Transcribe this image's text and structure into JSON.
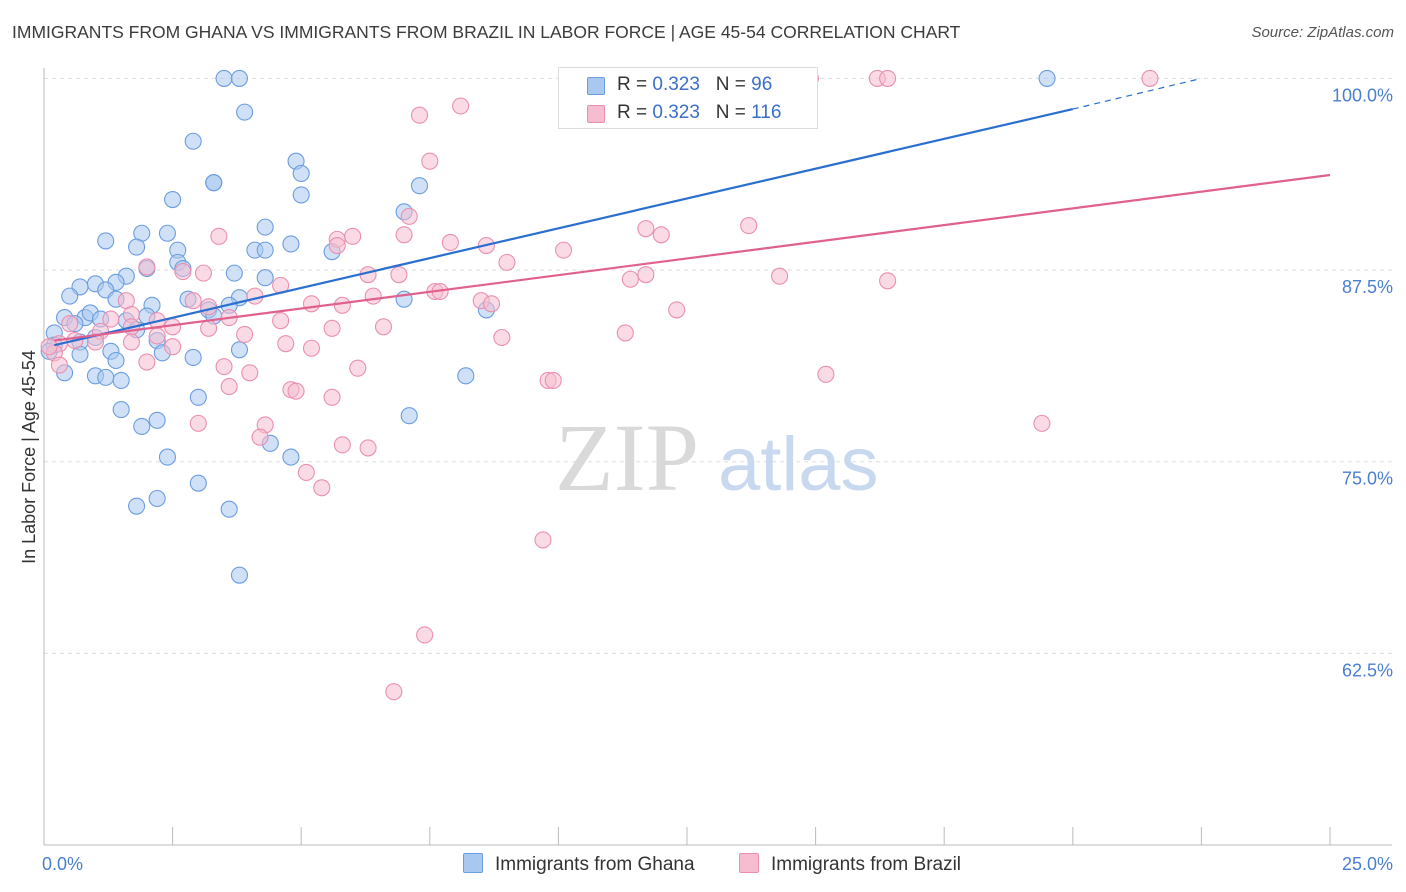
{
  "title": "IMMIGRANTS FROM GHANA VS IMMIGRANTS FROM BRAZIL IN LABOR FORCE | AGE 45-54 CORRELATION CHART",
  "source": "Source: ZipAtlas.com",
  "watermark": "ZIPatlas",
  "colors": {
    "ghana_fill": "#a9c8f0",
    "ghana_stroke": "#6b9de0",
    "ghana_line": "#2a6fcf",
    "brazil_fill": "#f6bdd0",
    "brazil_stroke": "#ea8fb0",
    "brazil_line": "#e0608e",
    "tick_label": "#4a7fd0",
    "grid": "#dddddd"
  },
  "legend": {
    "ghana": {
      "r_label": "R = ",
      "r_value": "0.323",
      "n_label": "N = ",
      "n_value": "96"
    },
    "brazil": {
      "r_label": "R = ",
      "r_value": "0.323",
      "n_label": "N = ",
      "n_value": "116"
    }
  },
  "bottom_legend": [
    "Immigrants from Ghana",
    "Immigrants from Brazil"
  ],
  "chart_data": {
    "type": "scatter",
    "title": "IMMIGRANTS FROM GHANA VS IMMIGRANTS FROM BRAZIL IN LABOR FORCE | AGE 45-54 CORRELATION CHART",
    "xlabel": "",
    "ylabel": "In Labor Force | Age 45-54",
    "xlim": [
      0,
      25
    ],
    "ylim": [
      50,
      101.2
    ],
    "x_tick_labels": [
      "0.0%",
      "25.0%"
    ],
    "x_ticks": [
      0,
      25
    ],
    "y_tick_labels": [
      "100.0%",
      "87.5%",
      "75.0%",
      "62.5%"
    ],
    "y_ticks": [
      100,
      87.5,
      75,
      62.5
    ],
    "grid": true,
    "legend_position": "top-center",
    "series": [
      {
        "name": "Immigrants from Ghana",
        "R": 0.323,
        "N": 96,
        "trend": {
          "x": [
            0.2,
            20
          ],
          "y": [
            82.6,
            98.0
          ],
          "dashed_x": [
            20,
            22.5
          ],
          "dashed_y": [
            98.0,
            100.0
          ]
        },
        "points": [
          [
            3.5,
            100
          ],
          [
            3.8,
            100
          ],
          [
            19.5,
            100
          ],
          [
            3.9,
            97.8
          ],
          [
            2.9,
            95.9
          ],
          [
            4.9,
            94.6
          ],
          [
            3.3,
            93.2
          ],
          [
            3.3,
            93.2
          ],
          [
            7.3,
            93
          ],
          [
            5.0,
            93.8
          ],
          [
            5.0,
            92.4
          ],
          [
            2.5,
            92.1
          ],
          [
            7.0,
            91.3
          ],
          [
            4.3,
            90.3
          ],
          [
            2.4,
            89.9
          ],
          [
            1.9,
            89.9
          ],
          [
            1.2,
            89.4
          ],
          [
            4.8,
            89.2
          ],
          [
            1.8,
            89.0
          ],
          [
            2.6,
            88.8
          ],
          [
            4.1,
            88.8
          ],
          [
            4.3,
            88.8
          ],
          [
            5.6,
            88.7
          ],
          [
            2.6,
            88.0
          ],
          [
            2.7,
            87.6
          ],
          [
            2.0,
            87.6
          ],
          [
            1.6,
            87.1
          ],
          [
            4.3,
            87.0
          ],
          [
            3.7,
            87.3
          ],
          [
            1.0,
            86.6
          ],
          [
            1.4,
            86.7
          ],
          [
            1.2,
            86.2
          ],
          [
            0.7,
            86.4
          ],
          [
            0.5,
            85.8
          ],
          [
            1.4,
            85.6
          ],
          [
            2.8,
            85.6
          ],
          [
            3.8,
            85.7
          ],
          [
            7.0,
            85.6
          ],
          [
            2.1,
            85.2
          ],
          [
            3.6,
            85.2
          ],
          [
            3.2,
            84.9
          ],
          [
            2.0,
            84.5
          ],
          [
            1.6,
            84.2
          ],
          [
            0.8,
            84.4
          ],
          [
            0.4,
            84.4
          ],
          [
            0.9,
            84.7
          ],
          [
            0.6,
            84.0
          ],
          [
            1.1,
            84.3
          ],
          [
            3.3,
            84.5
          ],
          [
            8.6,
            84.9
          ],
          [
            0.2,
            83.4
          ],
          [
            1.8,
            83.6
          ],
          [
            1.0,
            83.1
          ],
          [
            0.7,
            82.8
          ],
          [
            2.2,
            82.9
          ],
          [
            0.2,
            82.6
          ],
          [
            0.1,
            82.2
          ],
          [
            0.7,
            82.0
          ],
          [
            1.3,
            82.2
          ],
          [
            2.3,
            82.1
          ],
          [
            2.9,
            81.8
          ],
          [
            1.4,
            81.6
          ],
          [
            3.8,
            82.3
          ],
          [
            0.4,
            80.8
          ],
          [
            1.0,
            80.6
          ],
          [
            1.2,
            80.5
          ],
          [
            1.5,
            80.3
          ],
          [
            8.2,
            80.6
          ],
          [
            3.0,
            79.2
          ],
          [
            1.5,
            78.4
          ],
          [
            2.2,
            77.7
          ],
          [
            7.1,
            78.0
          ],
          [
            1.9,
            77.3
          ],
          [
            4.4,
            76.2
          ],
          [
            4.8,
            75.3
          ],
          [
            2.4,
            75.3
          ],
          [
            3.0,
            73.6
          ],
          [
            2.2,
            72.6
          ],
          [
            1.8,
            72.1
          ],
          [
            3.6,
            71.9
          ],
          [
            3.8,
            67.6
          ]
        ]
      },
      {
        "name": "Immigrants from Brazil",
        "R": 0.323,
        "N": 116,
        "trend": {
          "x": [
            0.2,
            25
          ],
          "y": [
            82.9,
            93.7
          ]
        },
        "points": [
          [
            11.9,
            100
          ],
          [
            14.9,
            100
          ],
          [
            21.5,
            100
          ],
          [
            16.2,
            100
          ],
          [
            16.4,
            100
          ],
          [
            8.1,
            98.2
          ],
          [
            7.3,
            97.6
          ],
          [
            7.5,
            94.6
          ],
          [
            7.1,
            91.0
          ],
          [
            11.7,
            90.2
          ],
          [
            13.7,
            90.4
          ],
          [
            12.0,
            89.8
          ],
          [
            3.4,
            89.7
          ],
          [
            7.0,
            89.8
          ],
          [
            5.7,
            89.5
          ],
          [
            7.9,
            89.3
          ],
          [
            5.7,
            89.1
          ],
          [
            6.0,
            89.7
          ],
          [
            8.6,
            89.1
          ],
          [
            10.1,
            88.8
          ],
          [
            2.0,
            87.7
          ],
          [
            9.0,
            88.0
          ],
          [
            11.7,
            87.2
          ],
          [
            14.3,
            87.1
          ],
          [
            16.4,
            86.8
          ],
          [
            3.1,
            87.3
          ],
          [
            2.7,
            87.4
          ],
          [
            6.3,
            87.2
          ],
          [
            6.9,
            87.2
          ],
          [
            11.4,
            86.9
          ],
          [
            4.6,
            86.5
          ],
          [
            7.6,
            86.1
          ],
          [
            7.7,
            86.1
          ],
          [
            6.4,
            85.8
          ],
          [
            4.1,
            85.8
          ],
          [
            1.6,
            85.5
          ],
          [
            2.9,
            85.5
          ],
          [
            5.2,
            85.3
          ],
          [
            5.8,
            85.2
          ],
          [
            3.2,
            85.1
          ],
          [
            8.5,
            85.5
          ],
          [
            12.3,
            84.9
          ],
          [
            1.7,
            84.6
          ],
          [
            2.2,
            84.2
          ],
          [
            1.3,
            84.3
          ],
          [
            3.6,
            84.4
          ],
          [
            4.6,
            84.2
          ],
          [
            0.5,
            84.0
          ],
          [
            1.7,
            83.8
          ],
          [
            2.5,
            83.8
          ],
          [
            3.2,
            83.7
          ],
          [
            5.6,
            83.7
          ],
          [
            6.6,
            83.8
          ],
          [
            1.1,
            83.5
          ],
          [
            2.2,
            83.2
          ],
          [
            3.9,
            83.3
          ],
          [
            11.3,
            83.4
          ],
          [
            0.6,
            82.9
          ],
          [
            0.3,
            82.7
          ],
          [
            1.0,
            82.8
          ],
          [
            1.7,
            82.8
          ],
          [
            2.5,
            82.5
          ],
          [
            4.7,
            82.7
          ],
          [
            5.2,
            82.4
          ],
          [
            8.9,
            83.1
          ],
          [
            0.2,
            82.1
          ],
          [
            0.3,
            81.3
          ],
          [
            2.0,
            81.5
          ],
          [
            3.5,
            81.2
          ],
          [
            4.0,
            80.8
          ],
          [
            6.1,
            81.1
          ],
          [
            9.8,
            80.3
          ],
          [
            9.9,
            80.3
          ],
          [
            15.2,
            80.7
          ],
          [
            3.6,
            79.9
          ],
          [
            4.8,
            79.7
          ],
          [
            4.9,
            79.6
          ],
          [
            5.6,
            79.2
          ],
          [
            3.0,
            77.5
          ],
          [
            4.3,
            77.4
          ],
          [
            19.4,
            77.5
          ],
          [
            4.2,
            76.6
          ],
          [
            5.8,
            76.1
          ],
          [
            6.3,
            75.9
          ],
          [
            5.1,
            74.3
          ],
          [
            5.4,
            73.3
          ],
          [
            9.7,
            69.9
          ],
          [
            7.4,
            63.7
          ],
          [
            6.8,
            60.0
          ],
          [
            0.1,
            82.5
          ],
          [
            8.7,
            85.3
          ]
        ]
      }
    ]
  }
}
